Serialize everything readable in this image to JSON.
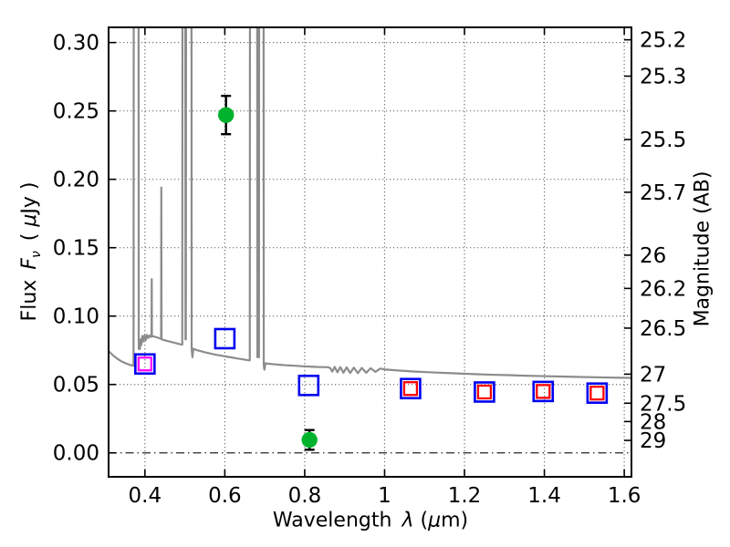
{
  "labels": {
    "xlabel": {
      "word": "Wavelength",
      "symbol": "λ",
      "open": "(",
      "mu": "μ",
      "close": "m)"
    },
    "ylabel_left": {
      "word": "Flux",
      "symbol_f": "F",
      "symbol_sub": "ν",
      "open": "( ",
      "mu": "μ",
      "close": "Jy )"
    },
    "ylabel_right": "Magnitude (AB)"
  },
  "chart_data": {
    "type": "line",
    "title": "",
    "xlabel": "Wavelength λ (μm)",
    "ylabel_left": "Flux Fν (μJy)",
    "ylabel_right": "Magnitude (AB)",
    "xlim": [
      0.309,
      1.618
    ],
    "ylim": [
      -0.0175,
      0.3111
    ],
    "grid": "dotted, at major ticks; zero-flux line dash-dot",
    "legend": "none",
    "x_ticks": [
      {
        "label": "0.4",
        "value": 0.4
      },
      {
        "label": "0.6",
        "value": 0.6
      },
      {
        "label": "0.8",
        "value": 0.8
      },
      {
        "label": "1",
        "value": 1.0
      },
      {
        "label": "1.2",
        "value": 1.2
      },
      {
        "label": "1.4",
        "value": 1.4
      },
      {
        "label": "1.6",
        "value": 1.6
      }
    ],
    "y_ticks_left": [
      {
        "label": "0.00",
        "value": 0.0
      },
      {
        "label": "0.05",
        "value": 0.05
      },
      {
        "label": "0.10",
        "value": 0.1
      },
      {
        "label": "0.15",
        "value": 0.15
      },
      {
        "label": "0.20",
        "value": 0.2
      },
      {
        "label": "0.25",
        "value": 0.25
      },
      {
        "label": "0.30",
        "value": 0.3
      }
    ],
    "y_ticks_right": {
      "note": "AB magnitudes mapped to flux via flux_uJy = 10^(-0.4*(mag-23.9))",
      "values": [
        25.2,
        25.3,
        25.5,
        25.7,
        26,
        26.2,
        26.5,
        27,
        27.5,
        28,
        29
      ]
    },
    "series": [
      {
        "name": "model-spectrum",
        "style": "gray solid line, emission lines clipped at top of axes",
        "points": [
          [
            0.309,
            0.0745
          ],
          [
            0.32,
            0.0713
          ],
          [
            0.331,
            0.0688
          ],
          [
            0.342,
            0.0668
          ],
          [
            0.353,
            0.0653
          ],
          [
            0.363,
            0.0643
          ],
          [
            0.371,
            0.0637
          ],
          [
            0.3715,
            0.0637
          ],
          [
            0.372,
            0.35
          ],
          [
            0.384,
            0.35
          ],
          [
            0.3845,
            0.076
          ],
          [
            0.386,
            0.08
          ],
          [
            0.3875,
            0.076
          ],
          [
            0.389,
            0.083
          ],
          [
            0.391,
            0.079
          ],
          [
            0.3935,
            0.0855
          ],
          [
            0.396,
            0.0815
          ],
          [
            0.399,
            0.086
          ],
          [
            0.402,
            0.0825
          ],
          [
            0.405,
            0.0862
          ],
          [
            0.408,
            0.084
          ],
          [
            0.411,
            0.0858
          ],
          [
            0.414,
            0.0848
          ],
          [
            0.4165,
            0.085
          ],
          [
            0.417,
            0.127
          ],
          [
            0.4175,
            0.085
          ],
          [
            0.421,
            0.0852
          ],
          [
            0.426,
            0.0848
          ],
          [
            0.431,
            0.0843
          ],
          [
            0.436,
            0.0838
          ],
          [
            0.4405,
            0.0833
          ],
          [
            0.441,
            0.194
          ],
          [
            0.4415,
            0.083
          ],
          [
            0.446,
            0.0826
          ],
          [
            0.452,
            0.0821
          ],
          [
            0.459,
            0.0816
          ],
          [
            0.467,
            0.081
          ],
          [
            0.475,
            0.0804
          ],
          [
            0.483,
            0.0798
          ],
          [
            0.49,
            0.0793
          ],
          [
            0.4935,
            0.0791
          ],
          [
            0.494,
            0.35
          ],
          [
            0.501,
            0.35
          ],
          [
            0.5015,
            0.083
          ],
          [
            0.5025,
            0.083
          ],
          [
            0.503,
            0.35
          ],
          [
            0.5165,
            0.35
          ],
          [
            0.517,
            0.076
          ],
          [
            0.519,
            0.07
          ],
          [
            0.521,
            0.0762
          ],
          [
            0.525,
            0.0756
          ],
          [
            0.531,
            0.075
          ],
          [
            0.539,
            0.0744
          ],
          [
            0.548,
            0.0737
          ],
          [
            0.558,
            0.073
          ],
          [
            0.569,
            0.0723
          ],
          [
            0.58,
            0.0716
          ],
          [
            0.592,
            0.071
          ],
          [
            0.604,
            0.0704
          ],
          [
            0.616,
            0.0698
          ],
          [
            0.628,
            0.0692
          ],
          [
            0.64,
            0.0686
          ],
          [
            0.651,
            0.0681
          ],
          [
            0.66,
            0.0677
          ],
          [
            0.6625,
            0.0676
          ],
          [
            0.663,
            0.35
          ],
          [
            0.681,
            0.35
          ],
          [
            0.6815,
            0.07
          ],
          [
            0.6855,
            0.07
          ],
          [
            0.686,
            0.35
          ],
          [
            0.697,
            0.35
          ],
          [
            0.6975,
            0.064
          ],
          [
            0.699,
            0.0608
          ],
          [
            0.702,
            0.0655
          ],
          [
            0.708,
            0.0652
          ],
          [
            0.716,
            0.065
          ],
          [
            0.726,
            0.0647
          ],
          [
            0.738,
            0.0644
          ],
          [
            0.75,
            0.0641
          ],
          [
            0.763,
            0.0639
          ],
          [
            0.776,
            0.0637
          ],
          [
            0.79,
            0.0634
          ],
          [
            0.804,
            0.0632
          ],
          [
            0.818,
            0.063
          ],
          [
            0.832,
            0.0628
          ],
          [
            0.846,
            0.0627
          ],
          [
            0.858,
            0.0626
          ],
          [
            0.864,
            0.062
          ],
          [
            0.869,
            0.0594
          ],
          [
            0.875,
            0.0628
          ],
          [
            0.882,
            0.0589
          ],
          [
            0.889,
            0.0627
          ],
          [
            0.897,
            0.0586
          ],
          [
            0.905,
            0.0625
          ],
          [
            0.914,
            0.0584
          ],
          [
            0.923,
            0.0623
          ],
          [
            0.933,
            0.0583
          ],
          [
            0.943,
            0.0621
          ],
          [
            0.954,
            0.0586
          ],
          [
            0.965,
            0.0619
          ],
          [
            0.977,
            0.0592
          ],
          [
            0.989,
            0.0616
          ],
          [
            1.001,
            0.061
          ],
          [
            1.022,
            0.0605
          ],
          [
            1.046,
            0.06
          ],
          [
            1.072,
            0.0595
          ],
          [
            1.1,
            0.0591
          ],
          [
            1.13,
            0.0587
          ],
          [
            1.162,
            0.0583
          ],
          [
            1.196,
            0.0579
          ],
          [
            1.232,
            0.0575
          ],
          [
            1.27,
            0.0571
          ],
          [
            1.31,
            0.0568
          ],
          [
            1.352,
            0.0564
          ],
          [
            1.396,
            0.0561
          ],
          [
            1.442,
            0.0558
          ],
          [
            1.49,
            0.0555
          ],
          [
            1.54,
            0.0552
          ],
          [
            1.59,
            0.0549
          ],
          [
            1.618,
            0.0548
          ]
        ]
      },
      {
        "name": "observed-photometry",
        "style": "filled green circles with black error bars",
        "points": [
          {
            "x": 0.603,
            "flux": 0.247,
            "err": 0.014
          },
          {
            "x": 0.812,
            "flux": 0.0095,
            "err": 0.0072
          }
        ]
      },
      {
        "name": "model-photometry",
        "style": "open blue squares; some contain an inner open square (red or magenta)",
        "points": [
          {
            "x": 0.4,
            "flux": 0.065,
            "inner": "magenta"
          },
          {
            "x": 0.6,
            "flux": 0.0835,
            "inner": null
          },
          {
            "x": 0.81,
            "flux": 0.0493,
            "inner": null
          },
          {
            "x": 1.065,
            "flux": 0.047,
            "inner": "red"
          },
          {
            "x": 1.25,
            "flux": 0.0445,
            "inner": "red"
          },
          {
            "x": 1.397,
            "flux": 0.0449,
            "inner": "red"
          },
          {
            "x": 1.532,
            "flux": 0.0437,
            "inner": "red"
          }
        ]
      }
    ],
    "colors": {
      "spectrum": "#8c8c8c",
      "observed_point": "#00b22d",
      "error_bar": "#000000",
      "square_outer": "#0000f0",
      "inner_red": "#ff0000",
      "inner_magenta": "#ff00ff",
      "axes": "#000000",
      "grid": "#000000",
      "background": "#ffffff"
    }
  }
}
